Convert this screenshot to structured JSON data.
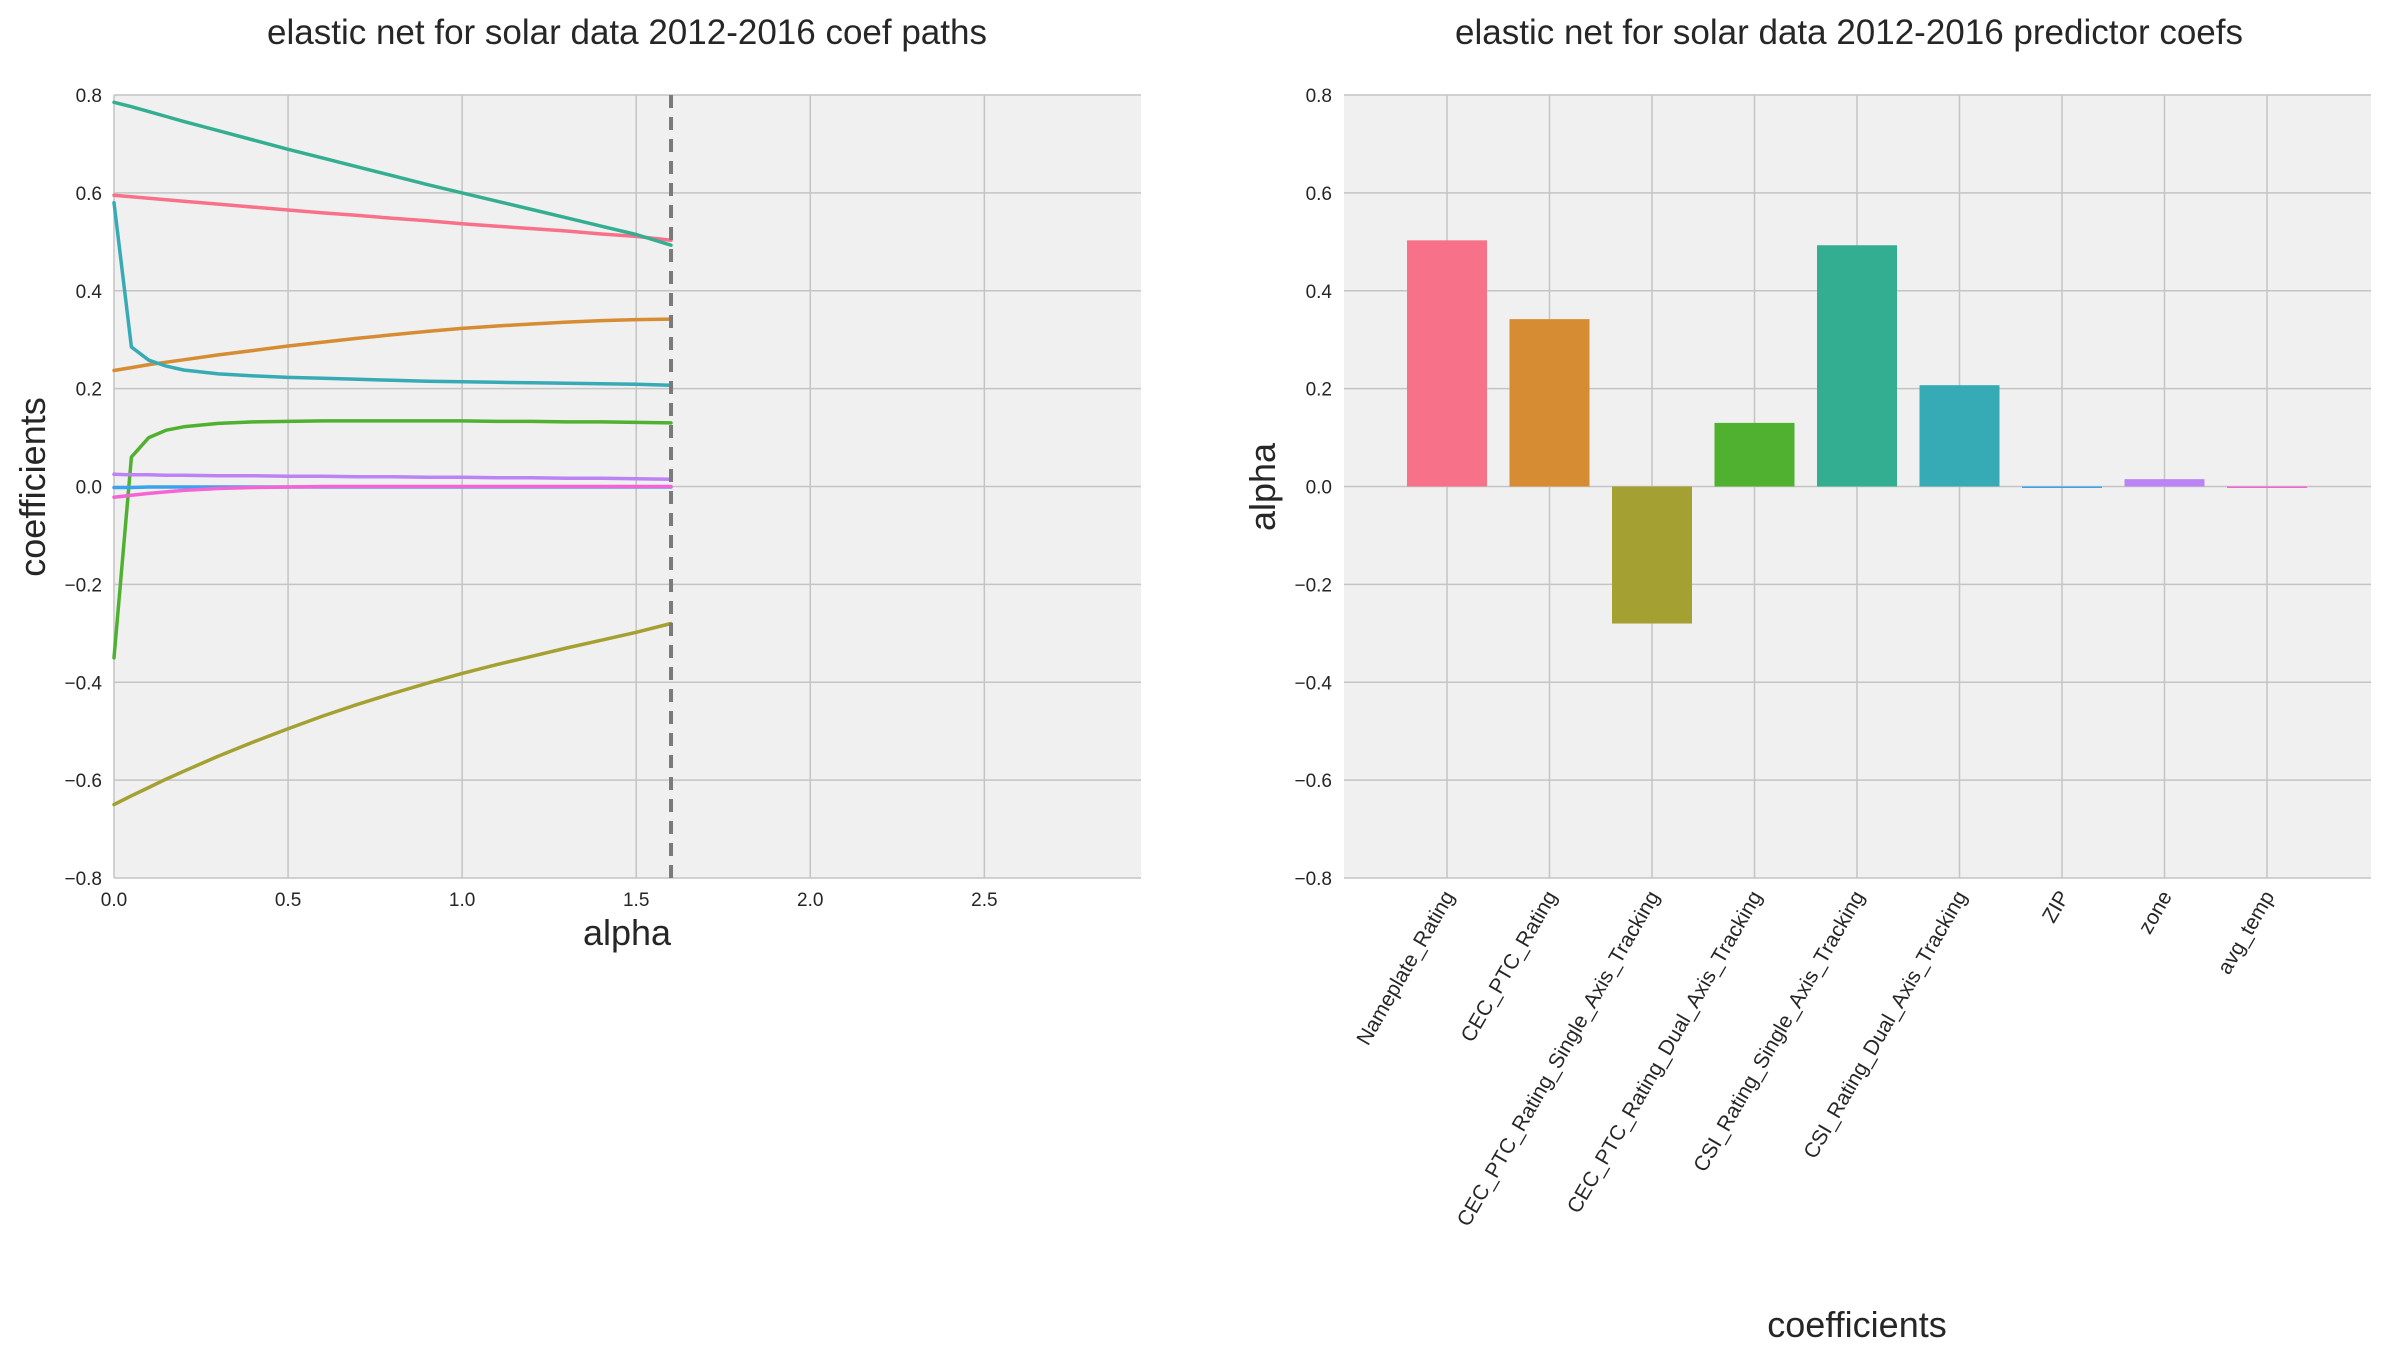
{
  "chart_data": [
    {
      "type": "line",
      "title": "elastic net for solar data 2012-2016 coef paths",
      "xlabel": "alpha",
      "ylabel": "coefficients",
      "xlim": [
        0,
        2.95
      ],
      "ylim": [
        -0.8,
        0.8
      ],
      "xticks": [
        0.0,
        0.5,
        1.0,
        1.5,
        2.0,
        2.5
      ],
      "xtick_labels": [
        "0.0",
        "0.5",
        "1.0",
        "1.5",
        "2.0",
        "2.5"
      ],
      "yticks": [
        -0.8,
        -0.6,
        -0.4,
        -0.2,
        0.0,
        0.2,
        0.4,
        0.6,
        0.8
      ],
      "ytick_labels": [
        "−0.8",
        "−0.6",
        "−0.4",
        "−0.2",
        "0.0",
        "0.2",
        "0.4",
        "0.6",
        "0.8"
      ],
      "grid": true,
      "vline": {
        "x": 1.6,
        "style": "dashed",
        "color": "#7a7a7a"
      },
      "x": [
        0.0,
        0.05,
        0.1,
        0.15,
        0.2,
        0.3,
        0.4,
        0.5,
        0.6,
        0.7,
        0.8,
        0.9,
        1.0,
        1.1,
        1.2,
        1.3,
        1.4,
        1.5,
        1.6
      ],
      "series": [
        {
          "color": "#f77189",
          "values": [
            0.595,
            0.592,
            0.589,
            0.586,
            0.583,
            0.577,
            0.571,
            0.565,
            0.559,
            0.554,
            0.548,
            0.543,
            0.537,
            0.532,
            0.527,
            0.522,
            0.516,
            0.511,
            0.503
          ]
        },
        {
          "color": "#d58c32",
          "values": [
            0.237,
            0.243,
            0.249,
            0.254,
            0.259,
            0.269,
            0.278,
            0.287,
            0.295,
            0.303,
            0.31,
            0.317,
            0.323,
            0.328,
            0.332,
            0.336,
            0.339,
            0.341,
            0.342
          ]
        },
        {
          "color": "#a4a031",
          "values": [
            -0.65,
            -0.632,
            -0.615,
            -0.598,
            -0.582,
            -0.551,
            -0.522,
            -0.495,
            -0.469,
            -0.445,
            -0.423,
            -0.402,
            -0.382,
            -0.364,
            -0.347,
            -0.33,
            -0.314,
            -0.298,
            -0.28
          ]
        },
        {
          "color": "#50b131",
          "values": [
            -0.35,
            0.06,
            0.1,
            0.115,
            0.122,
            0.129,
            0.132,
            0.133,
            0.134,
            0.134,
            0.134,
            0.134,
            0.134,
            0.133,
            0.133,
            0.132,
            0.132,
            0.131,
            0.13
          ]
        },
        {
          "color": "#34ae91",
          "values": [
            0.785,
            0.776,
            0.766,
            0.756,
            0.746,
            0.727,
            0.708,
            0.689,
            0.671,
            0.653,
            0.635,
            0.617,
            0.6,
            0.583,
            0.566,
            0.549,
            0.532,
            0.515,
            0.493
          ]
        },
        {
          "color": "#37abb5",
          "values": [
            0.58,
            0.285,
            0.258,
            0.246,
            0.238,
            0.23,
            0.226,
            0.223,
            0.221,
            0.219,
            0.217,
            0.215,
            0.214,
            0.213,
            0.212,
            0.211,
            0.21,
            0.209,
            0.207
          ]
        },
        {
          "color": "#3ba3ec",
          "values": [
            -0.002,
            -0.002,
            -0.001,
            -0.001,
            -0.001,
            -0.001,
            -0.001,
            -0.001,
            -0.001,
            -0.001,
            -0.001,
            -0.001,
            -0.001,
            -0.001,
            -0.001,
            -0.001,
            -0.001,
            -0.001,
            -0.001
          ]
        },
        {
          "color": "#bb83f4",
          "values": [
            0.025,
            0.024,
            0.024,
            0.023,
            0.023,
            0.022,
            0.022,
            0.021,
            0.021,
            0.02,
            0.02,
            0.019,
            0.019,
            0.018,
            0.018,
            0.017,
            0.017,
            0.016,
            0.015
          ]
        },
        {
          "color": "#f564d4",
          "values": [
            -0.022,
            -0.018,
            -0.014,
            -0.011,
            -0.008,
            -0.004,
            -0.002,
            -0.001,
            0.0,
            0.0,
            0.0,
            0.0,
            0.0,
            0.0,
            0.0,
            0.0,
            0.0,
            0.0,
            0.0
          ]
        }
      ]
    },
    {
      "type": "bar",
      "title": "elastic net for solar data 2012-2016 predictor coefs",
      "xlabel": "coefficients",
      "ylabel": "alpha",
      "ylim": [
        -0.8,
        0.8
      ],
      "yticks": [
        -0.8,
        -0.6,
        -0.4,
        -0.2,
        0.0,
        0.2,
        0.4,
        0.6,
        0.8
      ],
      "ytick_labels": [
        "−0.8",
        "−0.6",
        "−0.4",
        "−0.2",
        "0.0",
        "0.2",
        "0.4",
        "0.6",
        "0.8"
      ],
      "grid": true,
      "categories": [
        "Nameplate_Rating",
        "CEC_PTC_Rating",
        "CEC_PTC_Rating_Single_Axis_Tracking",
        "CEC_PTC_Rating_Dual_Axis_Tracking",
        "CSI_Rating_Single_Axis_Tracking",
        "CSI_Rating_Dual_Axis_Tracking",
        "ZIP",
        "zone",
        "avg_temp"
      ],
      "values": [
        0.503,
        0.342,
        -0.28,
        0.13,
        0.493,
        0.207,
        -0.001,
        0.015,
        0.0
      ],
      "colors": [
        "#f77189",
        "#d58c32",
        "#a4a031",
        "#50b131",
        "#34ae91",
        "#37abb5",
        "#3ba3ec",
        "#bb83f4",
        "#f564d4"
      ],
      "tick_rotation": -60
    }
  ]
}
